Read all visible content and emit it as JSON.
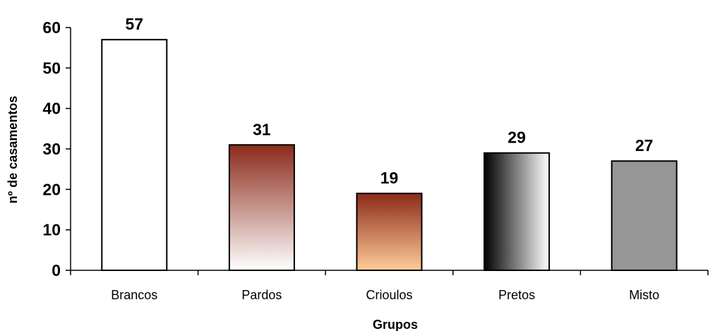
{
  "chart_data": {
    "type": "bar",
    "categories": [
      "Brancos",
      "Pardos",
      "Crioulos",
      "Pretos",
      "Misto"
    ],
    "values": [
      57,
      31,
      19,
      29,
      27
    ],
    "title": "",
    "xlabel": "Grupos",
    "ylabel": "nº de casamentos",
    "ylim": [
      0,
      60
    ],
    "yticks": [
      0,
      10,
      20,
      30,
      40,
      50,
      60
    ],
    "grid": false,
    "legend": "none",
    "bar_fills": [
      {
        "type": "solid",
        "colors": [
          "#ffffff"
        ]
      },
      {
        "type": "vertical-gradient",
        "colors": [
          "#8b2a1a",
          "#ffffff"
        ]
      },
      {
        "type": "vertical-gradient",
        "colors": [
          "#8b2a1a",
          "#ffcc99"
        ]
      },
      {
        "type": "horizontal-gradient",
        "colors": [
          "#000000",
          "#ffffff"
        ]
      },
      {
        "type": "solid",
        "colors": [
          "#969696"
        ]
      }
    ]
  }
}
